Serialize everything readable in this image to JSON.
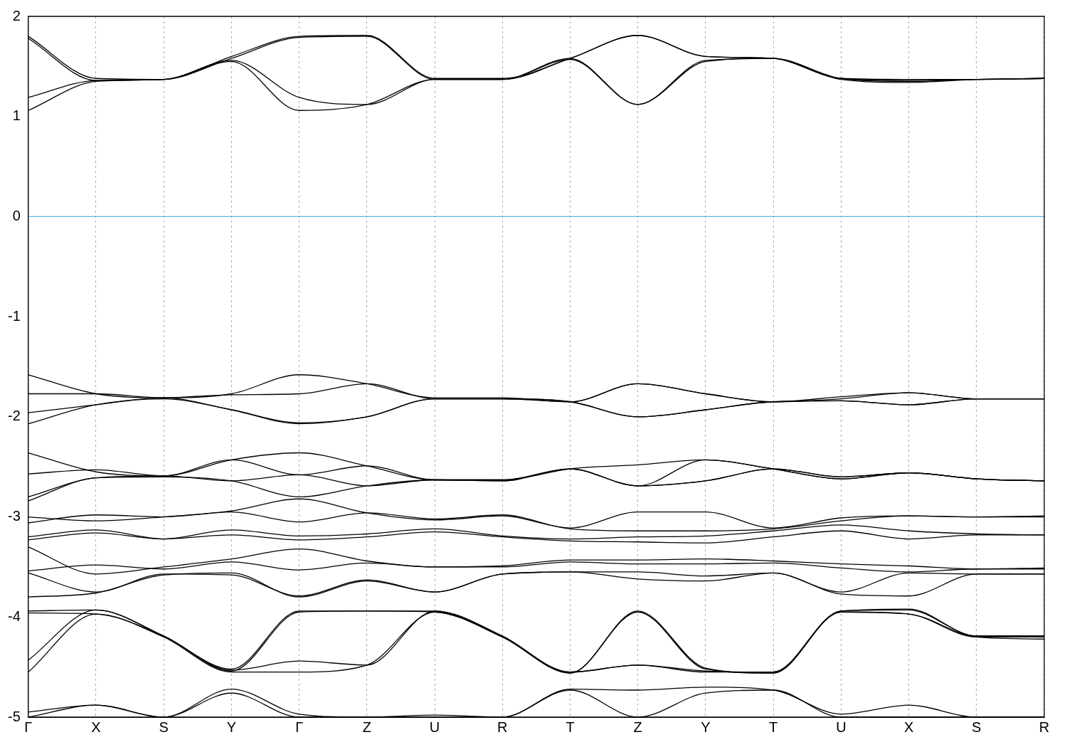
{
  "chart_data": {
    "type": "line",
    "categories": [
      "Γ",
      "X",
      "S",
      "Y",
      "Γ",
      "Z",
      "U",
      "R",
      "T",
      "Z",
      "Y",
      "T",
      "U",
      "X",
      "S",
      "R"
    ],
    "ylim": [
      -5,
      2
    ],
    "yticks": [
      -5,
      -4,
      -3,
      -2,
      -1,
      0,
      1,
      2
    ],
    "grid": "x",
    "ref_lines": [
      {
        "axis": "y",
        "value": 0,
        "color": "#5ab4e5"
      }
    ],
    "series": [
      {
        "color": "#000000",
        "values": [
          1.8,
          1.38,
          1.37,
          1.6,
          1.8,
          1.81,
          1.38,
          1.38,
          1.58,
          1.81,
          1.6,
          1.58,
          1.38,
          1.37,
          1.37,
          1.38
        ]
      },
      {
        "color": "#000000",
        "values": [
          1.78,
          1.36,
          1.37,
          1.58,
          1.79,
          1.8,
          1.37,
          1.37,
          1.58,
          1.81,
          1.6,
          1.58,
          1.38,
          1.36,
          1.37,
          1.38
        ]
      },
      {
        "color": "#000000",
        "values": [
          1.19,
          1.36,
          1.37,
          1.56,
          1.19,
          1.12,
          1.37,
          1.37,
          1.58,
          1.12,
          1.56,
          1.58,
          1.38,
          1.35,
          1.37,
          1.38
        ]
      },
      {
        "color": "#000000",
        "values": [
          1.06,
          1.35,
          1.37,
          1.55,
          1.06,
          1.12,
          1.37,
          1.37,
          1.57,
          1.12,
          1.55,
          1.58,
          1.37,
          1.34,
          1.37,
          1.38
        ]
      },
      {
        "color": "#000000",
        "values": [
          -1.58,
          -1.77,
          -1.81,
          -1.77,
          -1.58,
          -1.67,
          -1.81,
          -1.81,
          -1.85,
          -1.67,
          -1.77,
          -1.85,
          -1.8,
          -1.76,
          -1.82,
          -1.82
        ]
      },
      {
        "color": "#000000",
        "values": [
          -1.77,
          -1.77,
          -1.81,
          -1.78,
          -1.77,
          -1.67,
          -1.82,
          -1.82,
          -1.85,
          -1.67,
          -1.77,
          -1.85,
          -1.82,
          -1.76,
          -1.82,
          -1.82
        ]
      },
      {
        "color": "#000000",
        "values": [
          -1.96,
          -1.88,
          -1.81,
          -1.93,
          -2.06,
          -2,
          -1.82,
          -1.82,
          -1.85,
          -2,
          -1.93,
          -1.85,
          -1.84,
          -1.88,
          -1.82,
          -1.82
        ]
      },
      {
        "color": "#000000",
        "values": [
          -2.07,
          -1.88,
          -1.82,
          -1.93,
          -2.07,
          -2,
          -1.82,
          -1.82,
          -1.85,
          -2,
          -1.93,
          -1.85,
          -1.84,
          -1.88,
          -1.82,
          -1.82
        ]
      },
      {
        "color": "#000000",
        "values": [
          -2.36,
          -2.55,
          -2.59,
          -2.43,
          -2.36,
          -2.49,
          -2.63,
          -2.63,
          -2.52,
          -2.48,
          -2.43,
          -2.52,
          -2.62,
          -2.56,
          -2.62,
          -2.64
        ]
      },
      {
        "color": "#000000",
        "values": [
          -2.57,
          -2.53,
          -2.59,
          -2.43,
          -2.58,
          -2.49,
          -2.63,
          -2.63,
          -2.52,
          -2.69,
          -2.43,
          -2.52,
          -2.62,
          -2.56,
          -2.62,
          -2.64
        ]
      },
      {
        "color": "#000000",
        "values": [
          -2.8,
          -2.61,
          -2.59,
          -2.64,
          -2.58,
          -2.69,
          -2.63,
          -2.64,
          -2.52,
          -2.69,
          -2.64,
          -2.52,
          -2.6,
          -2.56,
          -2.62,
          -2.64
        ]
      },
      {
        "color": "#000000",
        "values": [
          -2.84,
          -2.61,
          -2.6,
          -2.64,
          -2.8,
          -2.69,
          -2.63,
          -2.64,
          -2.52,
          -2.69,
          -2.64,
          -2.52,
          -2.6,
          -2.56,
          -2.62,
          -2.64
        ]
      },
      {
        "color": "#000000",
        "values": [
          -3,
          -3.04,
          -3,
          -2.94,
          -2.82,
          -2.96,
          -3.03,
          -2.99,
          -3.11,
          -2.95,
          -2.95,
          -3.11,
          -3.01,
          -2.99,
          -3,
          -3
        ]
      },
      {
        "color": "#000000",
        "values": [
          -3.06,
          -2.98,
          -3,
          -2.95,
          -3.05,
          -2.96,
          -3.02,
          -2.98,
          -3.12,
          -3.14,
          -3.14,
          -3.12,
          -3.04,
          -2.99,
          -3,
          -2.99
        ]
      },
      {
        "color": "#000000",
        "values": [
          -3.2,
          -3.13,
          -3.22,
          -3.13,
          -3.19,
          -3.17,
          -3.12,
          -3.19,
          -3.22,
          -3.2,
          -3.19,
          -3.14,
          -3.08,
          -3.14,
          -3.17,
          -3.18
        ]
      },
      {
        "color": "#000000",
        "values": [
          -3.23,
          -3.16,
          -3.22,
          -3.18,
          -3.23,
          -3.2,
          -3.15,
          -3.2,
          -3.24,
          -3.25,
          -3.26,
          -3.2,
          -3.14,
          -3.22,
          -3.18,
          -3.18
        ]
      },
      {
        "color": "#000000",
        "values": [
          -3.3,
          -3.57,
          -3.5,
          -3.42,
          -3.32,
          -3.44,
          -3.5,
          -3.49,
          -3.43,
          -3.43,
          -3.42,
          -3.44,
          -3.47,
          -3.49,
          -3.52,
          -3.51
        ]
      },
      {
        "color": "#000000",
        "values": [
          -3.54,
          -3.48,
          -3.52,
          -3.45,
          -3.53,
          -3.46,
          -3.5,
          -3.5,
          -3.45,
          -3.47,
          -3.47,
          -3.46,
          -3.51,
          -3.55,
          -3.52,
          -3.52
        ]
      },
      {
        "color": "#000000",
        "values": [
          -3.56,
          -3.75,
          -3.57,
          -3.58,
          -3.79,
          -3.63,
          -3.75,
          -3.57,
          -3.55,
          -3.55,
          -3.59,
          -3.56,
          -3.75,
          -3.56,
          -3.57,
          -3.57
        ]
      },
      {
        "color": "#000000",
        "values": [
          -3.8,
          -3.76,
          -3.58,
          -3.56,
          -3.8,
          -3.64,
          -3.75,
          -3.57,
          -3.55,
          -3.62,
          -3.64,
          -3.56,
          -3.77,
          -3.79,
          -3.57,
          -3.57
        ]
      },
      {
        "color": "#000000",
        "values": [
          -3.94,
          -3.93,
          -4.19,
          -4.52,
          -3.94,
          -3.94,
          -3.94,
          -4.19,
          -4.56,
          -3.94,
          -4.51,
          -4.56,
          -3.94,
          -3.92,
          -4.19,
          -4.19
        ]
      },
      {
        "color": "#000000",
        "values": [
          -3.96,
          -3.97,
          -4.19,
          -4.54,
          -3.95,
          -3.94,
          -3.95,
          -4.2,
          -4.56,
          -3.95,
          -4.52,
          -4.56,
          -3.95,
          -3.97,
          -4.2,
          -4.22
        ]
      },
      {
        "color": "#000000",
        "values": [
          -4.43,
          -3.93,
          -4.19,
          -4.53,
          -4.44,
          -4.48,
          -3.94,
          -4.19,
          -4.55,
          -4.48,
          -4.54,
          -4.55,
          -3.94,
          -3.93,
          -4.19,
          -4.19
        ]
      },
      {
        "color": "#000000",
        "values": [
          -4.55,
          -3.97,
          -4.2,
          -4.55,
          -4.55,
          -4.48,
          -3.95,
          -4.2,
          -4.55,
          -4.48,
          -4.55,
          -4.55,
          -3.95,
          -3.97,
          -4.2,
          -4.2
        ]
      },
      {
        "color": "#000000",
        "values": [
          -4.95,
          -4.88,
          -5,
          -4.72,
          -4.97,
          -5,
          -4.98,
          -5,
          -4.72,
          -4.73,
          -4.7,
          -4.73,
          -4.97,
          -4.88,
          -5,
          -5
        ]
      },
      {
        "color": "#000000",
        "values": [
          -5,
          -4.88,
          -5,
          -4.76,
          -5,
          -5,
          -5,
          -5,
          -4.73,
          -5,
          -4.76,
          -4.73,
          -5,
          -5,
          -5,
          -5
        ]
      }
    ]
  }
}
